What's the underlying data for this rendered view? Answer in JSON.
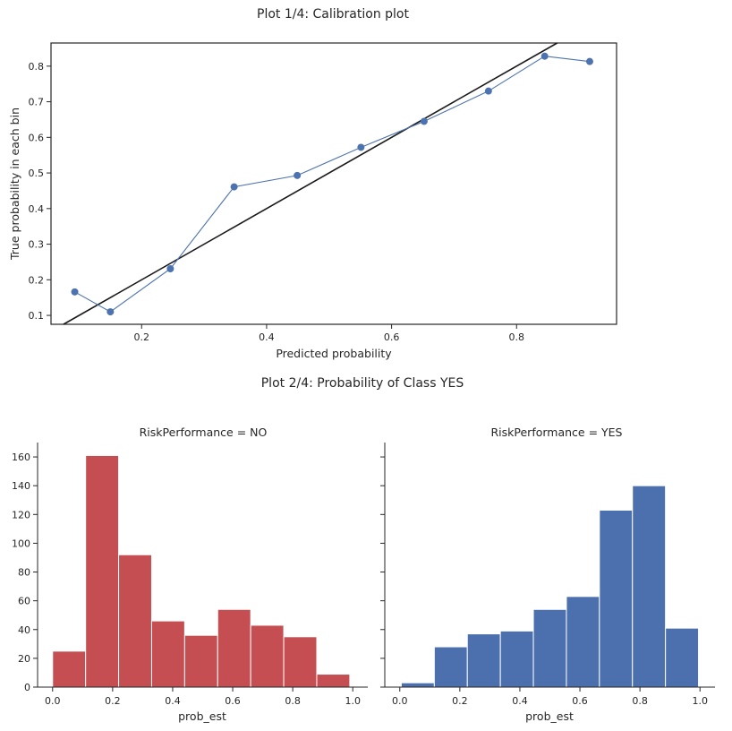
{
  "chart_data": [
    {
      "type": "line",
      "title": "Plot 1/4: Calibration plot",
      "xlabel": "Predicted probability",
      "ylabel": "True probability in each bin",
      "xlim": [
        0.055,
        0.96
      ],
      "ylim": [
        0.075,
        0.865
      ],
      "xticks": [
        "0.2",
        "0.4",
        "0.6",
        "0.8"
      ],
      "yticks": [
        "0.1",
        "0.2",
        "0.3",
        "0.4",
        "0.5",
        "0.6",
        "0.7",
        "0.8"
      ],
      "grid": false,
      "series": [
        {
          "color": "#4c72b0",
          "x": [
            0.093,
            0.15,
            0.246,
            0.348,
            0.449,
            0.551,
            0.652,
            0.755,
            0.845,
            0.917
          ],
          "y": [
            0.166,
            0.11,
            0.231,
            0.461,
            0.493,
            0.572,
            0.645,
            0.73,
            0.828,
            0.813
          ]
        }
      ],
      "reference_line": {
        "color": "#1a1a1a",
        "x": [
          0.0,
          1.0
        ],
        "y": [
          0.0,
          1.0
        ]
      }
    },
    {
      "type": "bar",
      "title": "Plot 2/4: Probability of Class YES",
      "xlabel": "prob_est",
      "xlim": [
        -0.05,
        1.05
      ],
      "ylim": [
        0,
        170
      ],
      "xticks": [
        "0.0",
        "0.2",
        "0.4",
        "0.6",
        "0.8",
        "1.0"
      ],
      "yticks": [
        "0",
        "20",
        "40",
        "60",
        "80",
        "100",
        "120",
        "140",
        "160"
      ],
      "panels": [
        {
          "title": "RiskPerformance = NO",
          "color": "#c44e52",
          "bin_edges": [
            0.0,
            0.11,
            0.22,
            0.33,
            0.44,
            0.55,
            0.66,
            0.77,
            0.88,
            0.99
          ],
          "counts": [
            25,
            161,
            92,
            46,
            36,
            54,
            43,
            35,
            9
          ]
        },
        {
          "title": "RiskPerformance = YES",
          "color": "#4c6fae",
          "bin_edges": [
            0.005,
            0.115,
            0.225,
            0.335,
            0.445,
            0.555,
            0.665,
            0.775,
            0.885,
            0.995
          ],
          "counts": [
            3,
            28,
            37,
            39,
            54,
            63,
            123,
            140,
            41
          ]
        }
      ]
    }
  ]
}
